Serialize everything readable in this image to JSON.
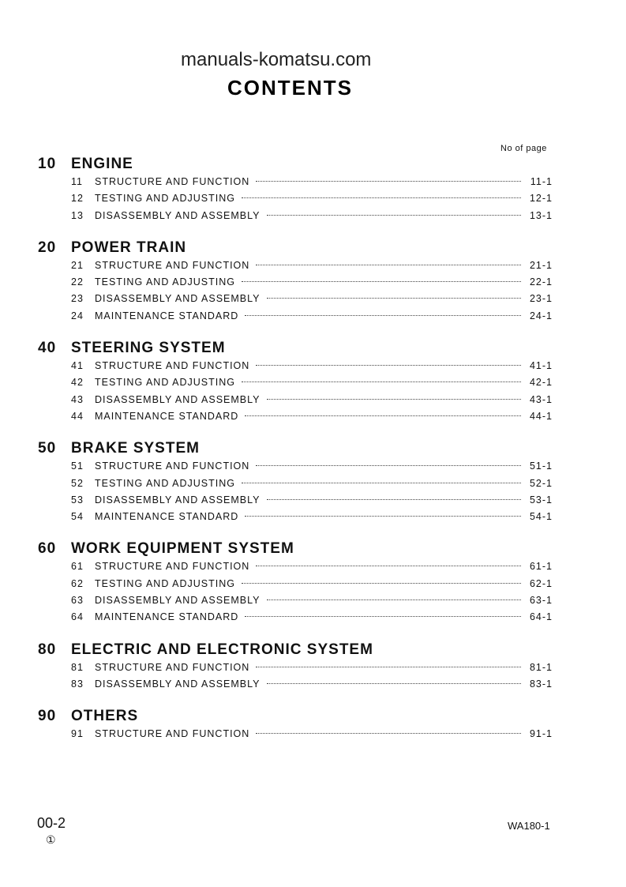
{
  "watermark": "manuals-komatsu.com",
  "title": "CONTENTS",
  "no_of_page_label": "No of page",
  "sections": [
    {
      "num": "10",
      "name": "ENGINE",
      "items": [
        {
          "num": "11",
          "title": "STRUCTURE AND FUNCTION",
          "page": "11-1"
        },
        {
          "num": "12",
          "title": "TESTING AND ADJUSTING",
          "page": "12-1"
        },
        {
          "num": "13",
          "title": "DISASSEMBLY AND ASSEMBLY",
          "page": "13-1"
        }
      ]
    },
    {
      "num": "20",
      "name": "POWER TRAIN",
      "items": [
        {
          "num": "21",
          "title": "STRUCTURE AND FUNCTION",
          "page": "21-1"
        },
        {
          "num": "22",
          "title": "TESTING AND ADJUSTING",
          "page": "22-1"
        },
        {
          "num": "23",
          "title": "DISASSEMBLY AND ASSEMBLY",
          "page": "23-1"
        },
        {
          "num": "24",
          "title": "MAINTENANCE STANDARD",
          "page": "24-1"
        }
      ]
    },
    {
      "num": "40",
      "name": "STEERING SYSTEM",
      "items": [
        {
          "num": "41",
          "title": "STRUCTURE AND FUNCTION",
          "page": "41-1"
        },
        {
          "num": "42",
          "title": "TESTING AND ADJUSTING",
          "page": "42-1"
        },
        {
          "num": "43",
          "title": "DISASSEMBLY AND ASSEMBLY",
          "page": "43-1"
        },
        {
          "num": "44",
          "title": "MAINTENANCE STANDARD",
          "page": "44-1"
        }
      ]
    },
    {
      "num": "50",
      "name": "BRAKE SYSTEM",
      "items": [
        {
          "num": "51",
          "title": "STRUCTURE AND FUNCTION",
          "page": "51-1"
        },
        {
          "num": "52",
          "title": "TESTING AND ADJUSTING",
          "page": "52-1"
        },
        {
          "num": "53",
          "title": "DISASSEMBLY AND ASSEMBLY",
          "page": "53-1"
        },
        {
          "num": "54",
          "title": "MAINTENANCE STANDARD",
          "page": "54-1"
        }
      ]
    },
    {
      "num": "60",
      "name": "WORK EQUIPMENT SYSTEM",
      "items": [
        {
          "num": "61",
          "title": "STRUCTURE AND FUNCTION",
          "page": "61-1"
        },
        {
          "num": "62",
          "title": "TESTING AND ADJUSTING",
          "page": "62-1"
        },
        {
          "num": "63",
          "title": "DISASSEMBLY AND ASSEMBLY",
          "page": "63-1"
        },
        {
          "num": "64",
          "title": "MAINTENANCE STANDARD",
          "page": "64-1"
        }
      ]
    },
    {
      "num": "80",
      "name": "ELECTRIC AND ELECTRONIC SYSTEM",
      "items": [
        {
          "num": "81",
          "title": "STRUCTURE AND FUNCTION",
          "page": "81-1"
        },
        {
          "num": "83",
          "title": "DISASSEMBLY AND ASSEMBLY",
          "page": "83-1"
        }
      ]
    },
    {
      "num": "90",
      "name": "OTHERS",
      "items": [
        {
          "num": "91",
          "title": "STRUCTURE AND FUNCTION",
          "page": "91-1"
        }
      ]
    }
  ],
  "footer": {
    "page": "00-2",
    "revision": "①",
    "model": "WA180-1"
  }
}
